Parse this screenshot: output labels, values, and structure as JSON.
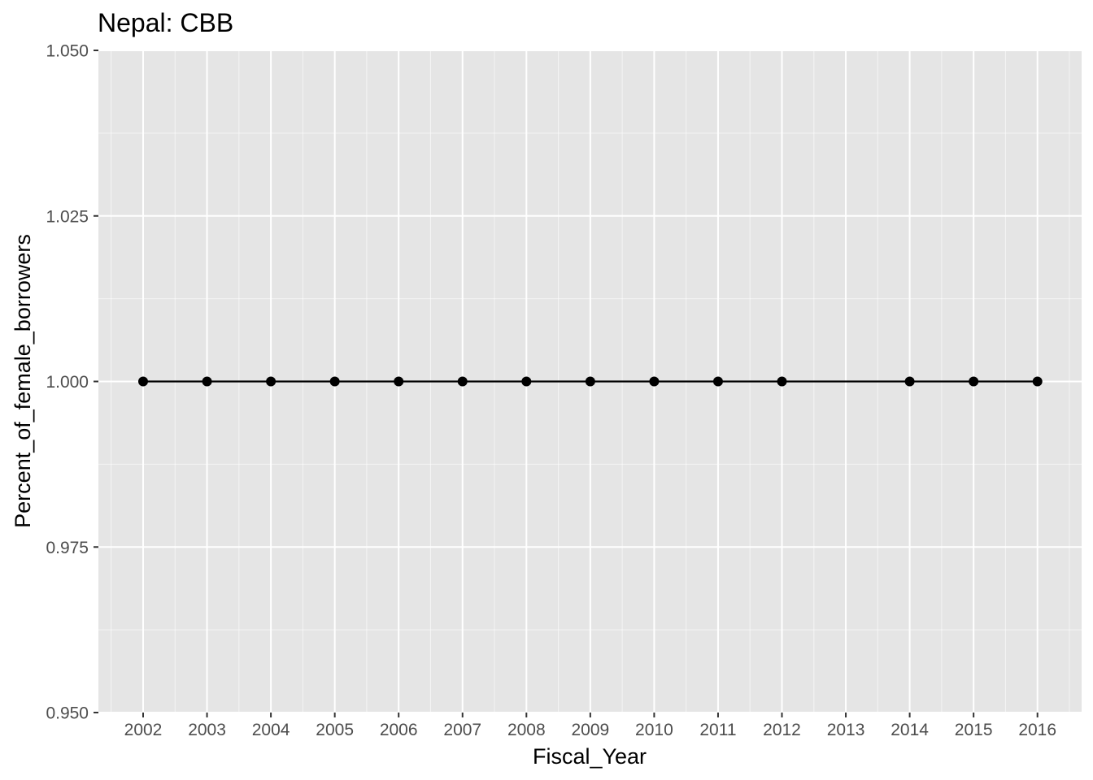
{
  "chart_data": {
    "type": "line",
    "title": "Nepal:  CBB",
    "xlabel": "Fiscal_Year",
    "ylabel": "Percent_of_female_borrowers",
    "x_categories": [
      "2002",
      "2003",
      "2004",
      "2005",
      "2006",
      "2007",
      "2008",
      "2009",
      "2010",
      "2011",
      "2012",
      "2013",
      "2014",
      "2015",
      "2016"
    ],
    "ylim": [
      0.95,
      1.05
    ],
    "y_ticks": [
      0.95,
      0.975,
      1.0,
      1.025,
      1.05
    ],
    "y_tick_labels": [
      "0.950",
      "0.975",
      "1.000",
      "1.025",
      "1.050"
    ],
    "series": [
      {
        "x": [
          "2002",
          "2003",
          "2004",
          "2005",
          "2006",
          "2007",
          "2008",
          "2009",
          "2010",
          "2011",
          "2012",
          "2014",
          "2015",
          "2016"
        ],
        "y": [
          1.0,
          1.0,
          1.0,
          1.0,
          1.0,
          1.0,
          1.0,
          1.0,
          1.0,
          1.0,
          1.0,
          1.0,
          1.0,
          1.0
        ]
      }
    ],
    "grid": true,
    "colors": {
      "panel_background": "#e5e5e5",
      "grid_major": "#ffffff",
      "line": "#000000",
      "point": "#000000",
      "tick_text": "#4d4d4d",
      "title_text": "#000000"
    }
  }
}
